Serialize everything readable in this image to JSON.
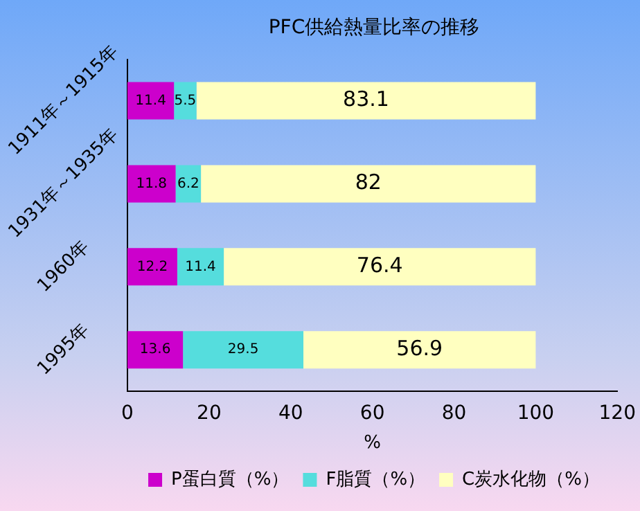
{
  "chart_data": {
    "type": "bar",
    "orientation": "horizontal",
    "stacked": true,
    "title": "PFC供給熱量比率の推移",
    "xlabel": "%",
    "categories": [
      "1911年～1915年",
      "1931年～1935年",
      "1960年",
      "1995年"
    ],
    "series": [
      {
        "name": "P蛋白質（%）",
        "color": "#cc00cc",
        "values": [
          11.4,
          11.8,
          12.2,
          13.6
        ]
      },
      {
        "name": "F脂質（%）",
        "color": "#55dddd",
        "values": [
          5.5,
          6.2,
          11.4,
          29.5
        ]
      },
      {
        "name": "C炭水化物（%）",
        "color": "#ffffc0",
        "values": [
          83.1,
          82,
          76.4,
          56.9
        ]
      }
    ],
    "xlim": [
      0,
      120
    ],
    "xticks": [
      0,
      20,
      40,
      60,
      80,
      100,
      120
    ],
    "grid": false,
    "legend": "bottom",
    "data_labels": true
  }
}
